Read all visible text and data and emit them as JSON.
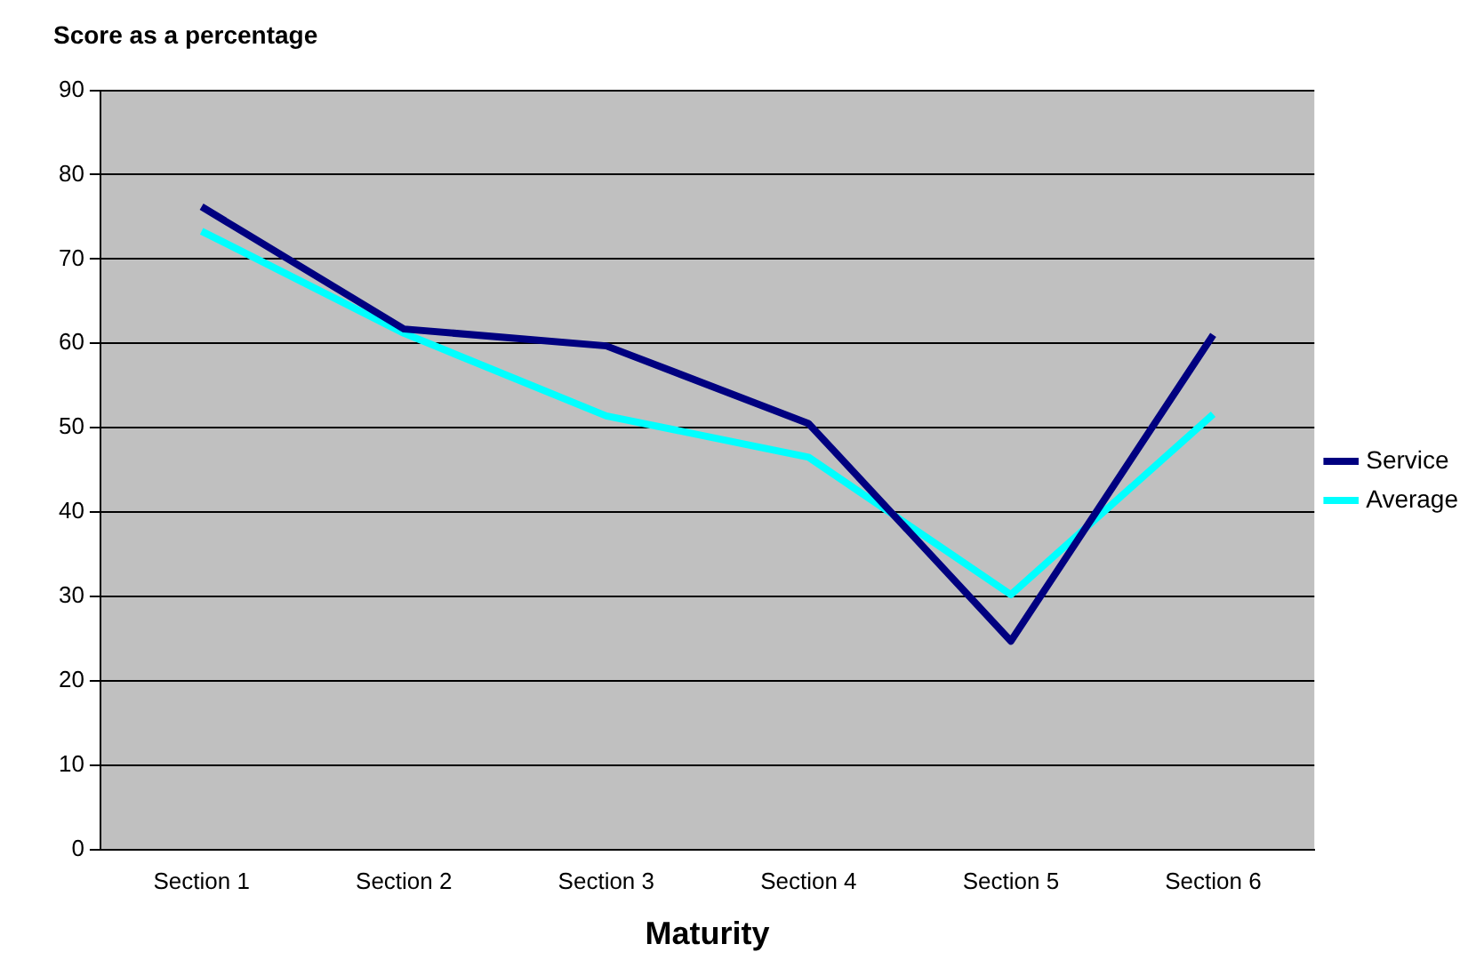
{
  "chart_data": {
    "type": "line",
    "ylabel": "Score as a percentage",
    "xlabel": "Maturity",
    "categories": [
      "Section 1",
      "Section 2",
      "Section 3",
      "Section 4",
      "Section 5",
      "Section 6"
    ],
    "series": [
      {
        "name": "Service",
        "color": "#000080",
        "values": [
          76.2,
          61.7,
          59.7,
          50.5,
          24.7,
          61
        ]
      },
      {
        "name": "Average",
        "color": "#00ffff",
        "values": [
          73.3,
          61.2,
          51.4,
          46.5,
          30.2,
          51.6
        ]
      }
    ],
    "ylim": [
      0,
      90
    ],
    "yticks": [
      0,
      10,
      20,
      30,
      40,
      50,
      60,
      70,
      80,
      90
    ],
    "grid": "y",
    "legend": "right",
    "marker": "none",
    "line_style": "solid"
  }
}
